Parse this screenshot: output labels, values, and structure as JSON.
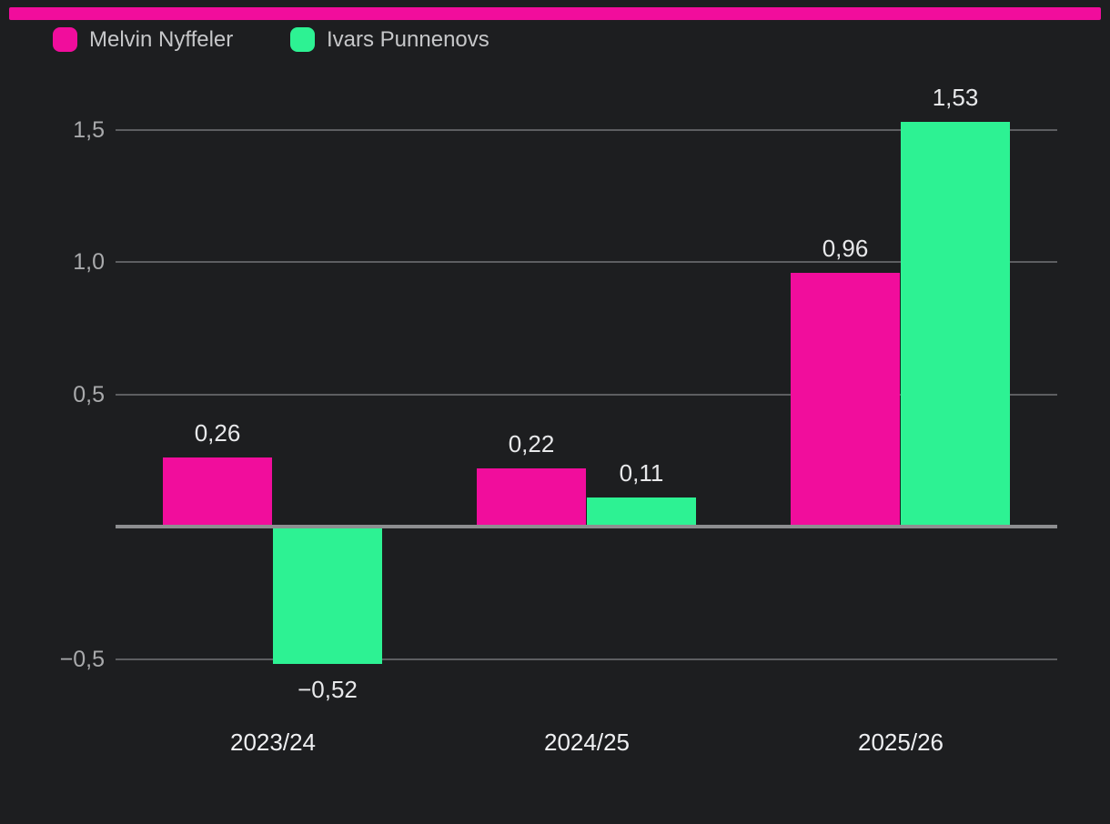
{
  "colors": {
    "background": "#1d1e20",
    "top_bar": "#f10d9c",
    "series_pink": "#f10d9c",
    "series_green": "#2df293",
    "gridline": "#5d5e61",
    "baseline": "#8d8e90",
    "tick_label": "#a9aaac",
    "value_label": "#e8e9eb",
    "category_label": "#eff0f2",
    "legend_label": "#c6c7c9"
  },
  "legend": {
    "position": "top-left",
    "items": [
      {
        "label": "Melvin Nyffeler",
        "color": "#f10d9c"
      },
      {
        "label": "Ivars Punnenovs",
        "color": "#2df293"
      }
    ]
  },
  "chart_data": {
    "type": "bar",
    "title": "",
    "xlabel": "",
    "ylabel": "",
    "categories": [
      "2023/24",
      "2024/25",
      "2025/26"
    ],
    "series": [
      {
        "name": "Melvin Nyffeler",
        "color": "#f10d9c",
        "values": [
          0.26,
          0.22,
          0.96
        ],
        "value_labels": [
          "0,26",
          "0,22",
          "0,96"
        ]
      },
      {
        "name": "Ivars Punnenovs",
        "color": "#2df293",
        "values": [
          -0.52,
          0.11,
          1.53
        ],
        "value_labels": [
          "−0,52",
          "0,11",
          "1,53"
        ]
      }
    ],
    "y_ticks": [
      {
        "value": 1.5,
        "label": "1,5"
      },
      {
        "value": 1.0,
        "label": "1,0"
      },
      {
        "value": 0.5,
        "label": "0,5"
      },
      {
        "value": -0.5,
        "label": "−0,5"
      }
    ],
    "ylim": [
      -0.75,
      1.75
    ],
    "grid": true,
    "zero_baseline": true,
    "value_labels_shown": true,
    "decimal_separator": ",",
    "legend_position": "top-left"
  }
}
